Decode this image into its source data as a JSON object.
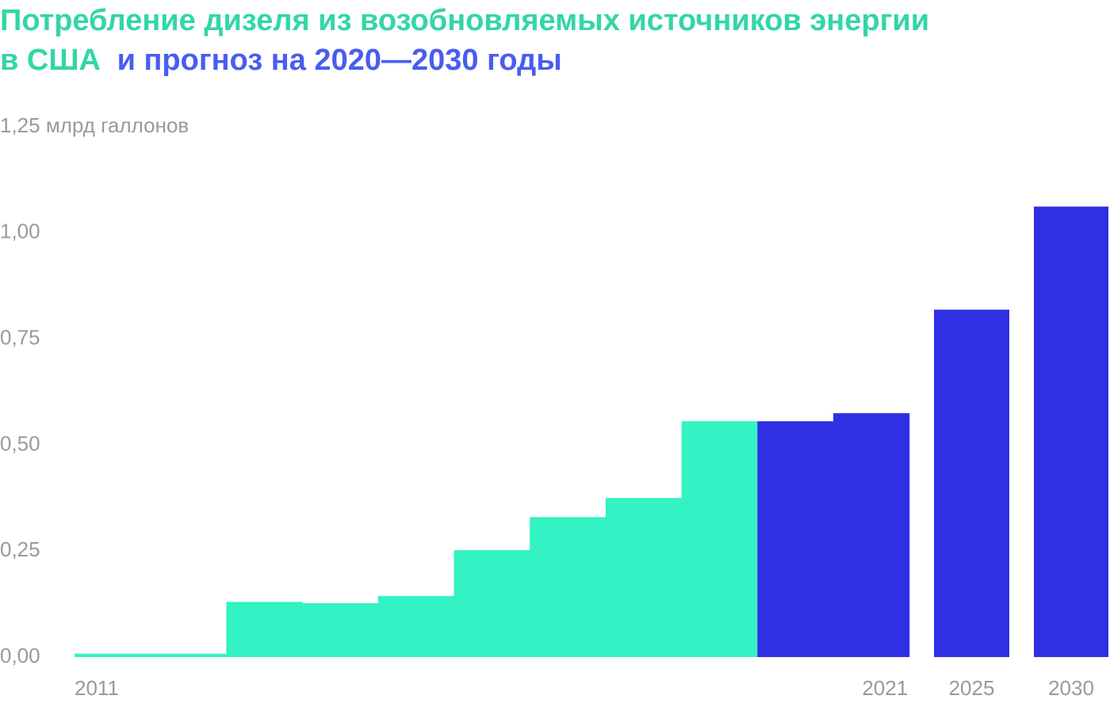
{
  "chart_data": {
    "type": "bar",
    "title": [
      "Потребление дизеля из возобновляемых источников энергии",
      "в США"
    ],
    "title_forecast": "и прогноз на 2020—2030 годы",
    "title_color": "#33d6a6",
    "title_forecast_color": "#4a5cf0",
    "categories": [
      "2011",
      null,
      null,
      null,
      null,
      null,
      null,
      null,
      null,
      null,
      "2021",
      "2025",
      "2030"
    ],
    "values": [
      0.008,
      0.008,
      0.13,
      0.127,
      0.144,
      0.252,
      0.33,
      0.375,
      0.556,
      0.556,
      0.575,
      0.819,
      1.062
    ],
    "colors": [
      "#33f2c3",
      "#33f2c3",
      "#33f2c3",
      "#33f2c3",
      "#33f2c3",
      "#33f2c3",
      "#33f2c3",
      "#33f2c3",
      "#33f2c3",
      "#2f2fe3",
      "#2f2fe3",
      "#2f2fe3",
      "#2f2fe3"
    ],
    "ylim": [
      0,
      1.25
    ],
    "yticks": [
      {
        "value": 0,
        "label": "0,00"
      },
      {
        "value": 0.25,
        "label": "0,25"
      },
      {
        "value": 0.5,
        "label": "0,50"
      },
      {
        "value": 0.75,
        "label": "0,75"
      },
      {
        "value": 1,
        "label": "1,00"
      },
      {
        "value": 1.25,
        "label": "1,25 млрд галлонов"
      }
    ],
    "grid": false
  }
}
